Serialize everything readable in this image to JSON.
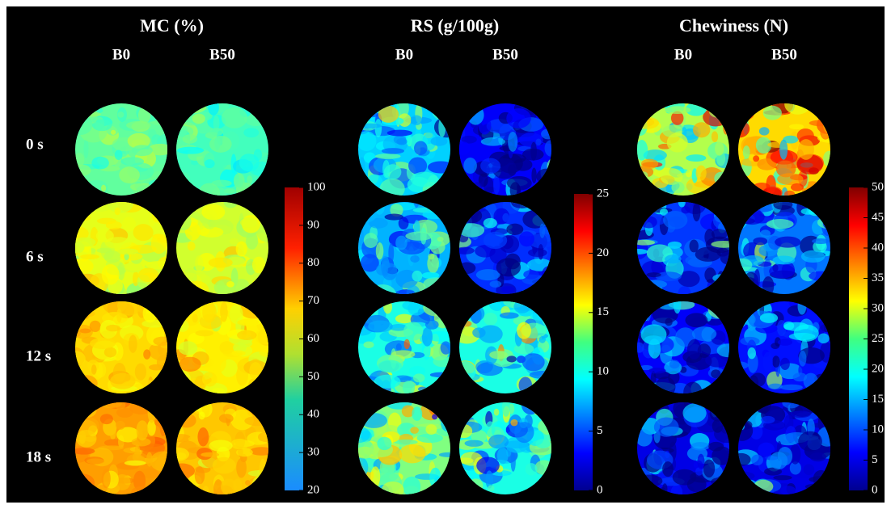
{
  "panels": [
    {
      "title": "MC (%)",
      "columns": [
        "B0",
        "B50"
      ],
      "colorbar": {
        "lim": [
          20,
          100
        ],
        "ticks": [
          20,
          30,
          40,
          50,
          60,
          70,
          80,
          90,
          100
        ]
      }
    },
    {
      "title": "RS (g/100g)",
      "columns": [
        "B0",
        "B50"
      ],
      "colorbar": {
        "lim": [
          0,
          25
        ],
        "ticks": [
          0,
          5,
          10,
          15,
          20,
          25
        ]
      }
    },
    {
      "title": "Chewiness (N)",
      "columns": [
        "B0",
        "B50"
      ],
      "colorbar": {
        "lim": [
          0,
          50
        ],
        "ticks": [
          0,
          5,
          10,
          15,
          20,
          25,
          30,
          35,
          40,
          45,
          50
        ]
      }
    }
  ],
  "rows": [
    "0 s",
    "6 s",
    "12 s",
    "18 s"
  ]
}
